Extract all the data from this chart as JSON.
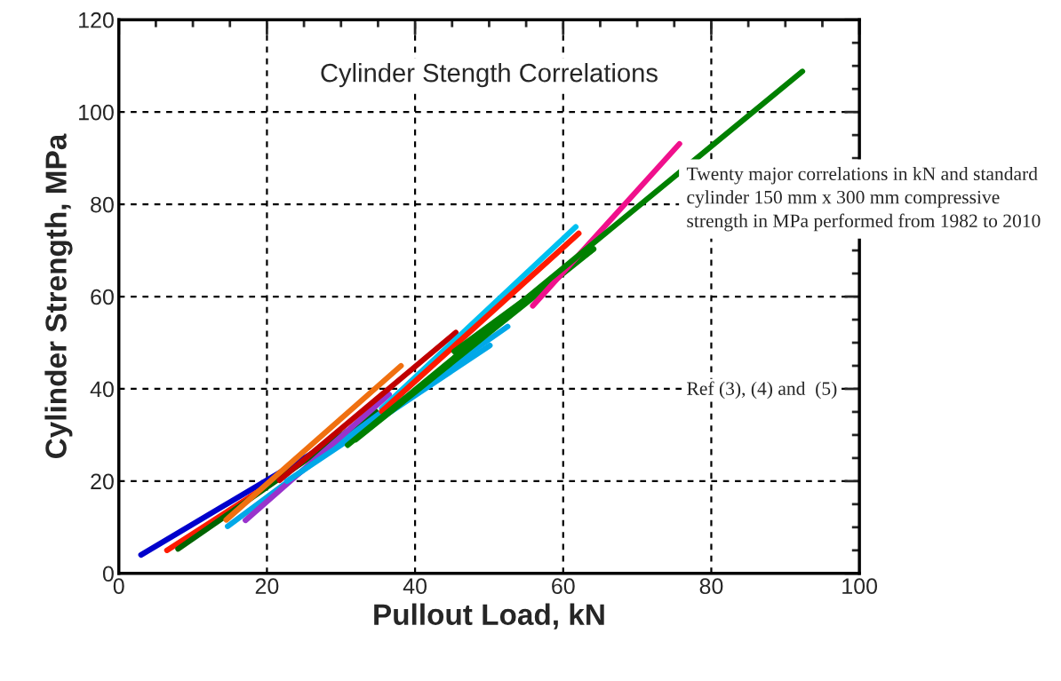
{
  "chart_data": {
    "type": "line",
    "title": "Cylinder Stength Correlations",
    "xlabel": "Pullout Load, kN",
    "ylabel": "Cylinder Strength, MPa",
    "xlim": [
      0,
      100
    ],
    "xticks": [
      0,
      20,
      40,
      60,
      80,
      100
    ],
    "ylim": [
      0,
      120
    ],
    "yticks": [
      0,
      20,
      40,
      60,
      80,
      100,
      120
    ],
    "grid": true,
    "line_style": "solid",
    "series": [
      {
        "color": "#0000cc",
        "x": [
          3.0,
          35
        ],
        "values": [
          4.0,
          34.5
        ]
      },
      {
        "color": "#ff1a00",
        "x": [
          6.5,
          22
        ],
        "values": [
          5.0,
          21
        ]
      },
      {
        "color": "#006400",
        "x": [
          8.0,
          34.7
        ],
        "values": [
          5.3,
          35.1
        ]
      },
      {
        "color": "#f07010",
        "x": [
          14.5,
          38.1
        ],
        "values": [
          11.6,
          45
        ]
      },
      {
        "color": "#00a8e8",
        "x": [
          14.7,
          35.1
        ],
        "values": [
          10.2,
          34.5
        ]
      },
      {
        "color": "#9933cc",
        "x": [
          17.1,
          36.5
        ],
        "values": [
          11.5,
          38.8
        ]
      },
      {
        "color": "#c00000",
        "x": [
          21.7,
          45.5
        ],
        "values": [
          20.2,
          52.2
        ]
      },
      {
        "color": "#00a8e8",
        "x": [
          22.7,
          50.1
        ],
        "values": [
          20,
          49.4
        ]
      },
      {
        "color": "#00a8e8",
        "x": [
          36,
          52.5
        ],
        "values": [
          35,
          53.5
        ]
      },
      {
        "color": "#00c0f0",
        "x": [
          35.5,
          61.7
        ],
        "values": [
          35.7,
          75.1
        ]
      },
      {
        "color": "#ff1a00",
        "x": [
          35.5,
          62.1
        ],
        "values": [
          35.1,
          73.7
        ]
      },
      {
        "color": "#008000",
        "x": [
          32,
          64.1
        ],
        "values": [
          29,
          70.3
        ]
      },
      {
        "color": "#008000",
        "x": [
          45.3,
          64.1
        ],
        "values": [
          48.1,
          70.3
        ]
      },
      {
        "color": "#f0108c",
        "x": [
          55.9,
          75.7
        ],
        "values": [
          58,
          93.1
        ]
      },
      {
        "color": "#008000",
        "x": [
          30.9,
          92.3
        ],
        "values": [
          27.8,
          108.8
        ]
      }
    ],
    "annotations": [
      "Twenty major correlations in kN and standard cylinder 150 mm x 300 mm compressive strength in MPa performed from 1982 to 2010",
      "Ref (3), (4) and  (5)"
    ]
  }
}
